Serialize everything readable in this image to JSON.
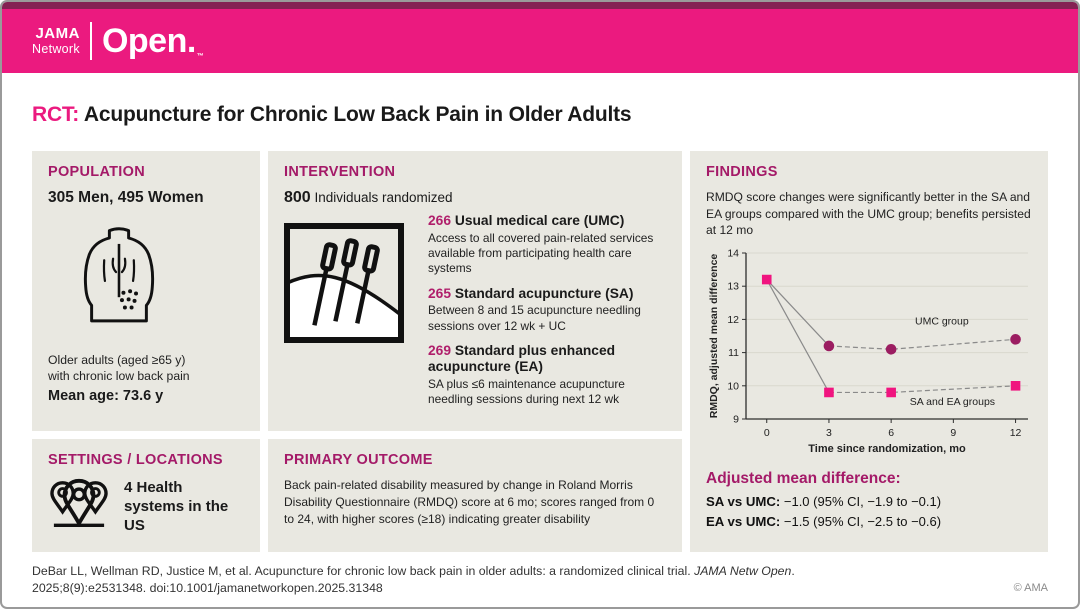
{
  "brand": {
    "jama": "JAMA",
    "network": "Network",
    "journal": "Open.",
    "tm": "™"
  },
  "title": {
    "prefix": "RCT:",
    "text": " Acupuncture for Chronic Low Back Pain in Older Adults"
  },
  "population": {
    "heading": "POPULATION",
    "counts": "305 Men, 495 Women",
    "desc_line1": "Older adults (aged ≥65 y)",
    "desc_line2": "with chronic low back pain",
    "mean_age": "Mean age: 73.6 y"
  },
  "settings": {
    "heading": "SETTINGS / LOCATIONS",
    "text": "4 Health systems in the US"
  },
  "intervention": {
    "heading": "INTERVENTION",
    "n": "800",
    "n_label": " Individuals randomized",
    "arms": [
      {
        "n": "266 ",
        "name": "Usual medical care (UMC)",
        "desc": "Access to all covered pain-related services available from participating health care systems"
      },
      {
        "n": "265 ",
        "name": "Standard acupuncture (SA)",
        "desc": "Between 8 and 15 acupuncture needling sessions over 12 wk + UC"
      },
      {
        "n": "269 ",
        "name": "Standard plus enhanced acupuncture (EA)",
        "desc": "SA plus ≤6 maintenance acupuncture needling sessions during next 12 wk"
      }
    ]
  },
  "outcome": {
    "heading": "PRIMARY OUTCOME",
    "text": "Back pain-related disability measured by change in Roland Morris Disability Questionnaire (RMDQ) score at 6 mo; scores ranged from 0 to 24, with higher scores (≥18) indicating greater disability"
  },
  "findings": {
    "heading": "FINDINGS",
    "summary": "RMDQ score changes were significantly better in the SA and EA groups compared with the UMC group; benefits persisted at 12 mo",
    "adjusted_heading": "Adjusted mean difference:",
    "results": [
      {
        "label": "SA vs UMC:",
        "value": " −1.0 (95% CI, −1.9 to −0.1)"
      },
      {
        "label": "EA vs UMC:",
        "value": " −1.5 (95% CI, −2.5 to −0.6)"
      }
    ]
  },
  "chart_data": {
    "type": "line",
    "title": "",
    "x": [
      0,
      3,
      6,
      12
    ],
    "series": [
      {
        "name": "UMC group",
        "values": [
          13.2,
          11.2,
          11.1,
          11.4
        ],
        "marker": "circle",
        "color": "#9b1d61",
        "skip_first_marker": true
      },
      {
        "name": "SA and EA groups",
        "values": [
          13.2,
          9.8,
          9.8,
          10.0
        ],
        "marker": "square",
        "color": "#f0147f",
        "skip_first_marker": false
      }
    ],
    "xlabel": "Time since randomization, mo",
    "ylabel": "RMDQ, adjusted mean difference",
    "xticks": [
      0,
      3,
      6,
      9,
      12
    ],
    "yticks": [
      9,
      10,
      11,
      12,
      13,
      14
    ],
    "xlim": [
      -1,
      12.6
    ],
    "ylim": [
      9,
      14
    ],
    "grid": "horizontal",
    "line_color": "#8a8a8a",
    "annotations": [
      {
        "text": "UMC group",
        "x": 7.15,
        "y": 11.85
      },
      {
        "text": "SA and EA groups",
        "x": 6.9,
        "y": 9.42
      }
    ]
  },
  "footer": {
    "citation_plain": "DeBar LL, Wellman RD, Justice M, et al. Acupuncture for chronic low back pain in older adults: a randomized clinical trial. ",
    "citation_italic": "JAMA Netw Open",
    "citation_after_italic": ".",
    "citation_line2": "2025;8(9):e2531348. doi:10.1001/jamanetworkopen.2025.31348",
    "copyright": "© AMA"
  },
  "colors": {
    "accent_pink": "#eb1a7f",
    "dark_strip": "#842153",
    "berry": "#a41a68",
    "berry_num": "#b01f6b",
    "box_bg": "#e9e8e1",
    "umc_marker": "#9b1d61",
    "sa_marker": "#f0147f"
  }
}
